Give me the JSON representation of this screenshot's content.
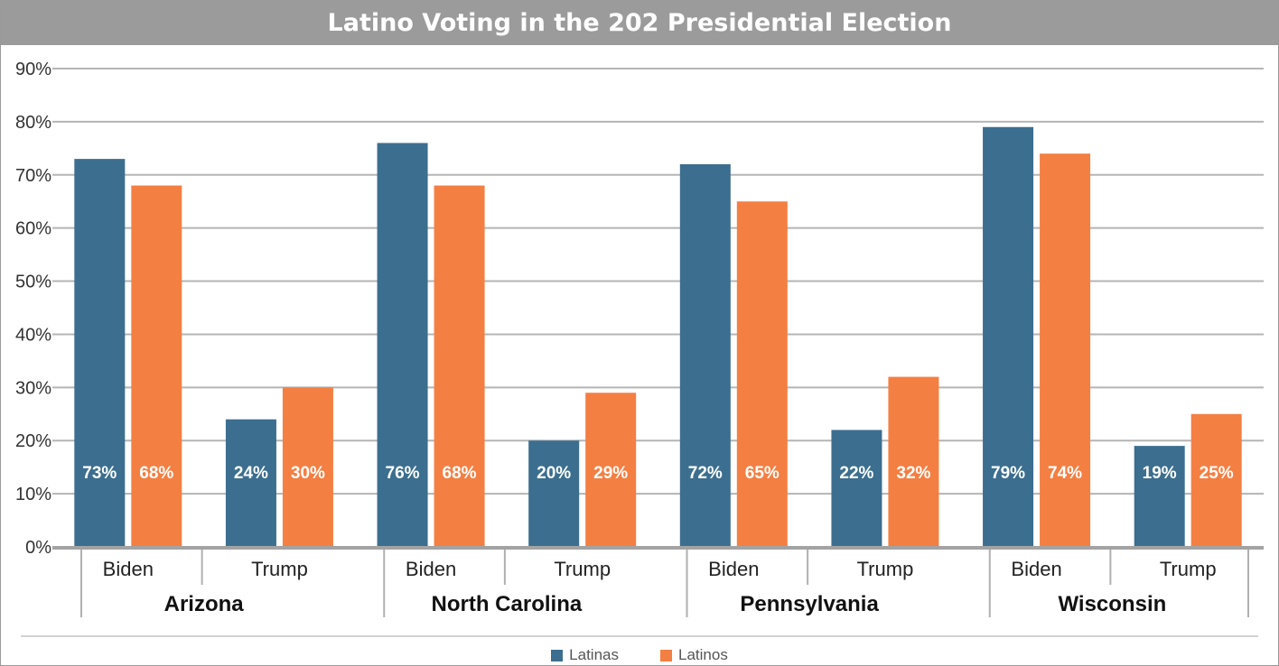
{
  "chart_data": {
    "type": "bar",
    "title": "Latino Voting in the 202 Presidential Election",
    "groups": [
      "Arizona",
      "North Carolina",
      "Pennsylvania",
      "Wisconsin"
    ],
    "subcategories": [
      "Biden",
      "Trump"
    ],
    "series": [
      {
        "name": "Latinas",
        "color": "#3c6e8f",
        "values": [
          [
            73,
            24
          ],
          [
            76,
            20
          ],
          [
            72,
            22
          ],
          [
            79,
            19
          ]
        ],
        "labels": [
          [
            "73%",
            "24%"
          ],
          [
            "76%",
            "20%"
          ],
          [
            "72%",
            "22%"
          ],
          [
            "79%",
            "19%"
          ]
        ]
      },
      {
        "name": "Latinos",
        "color": "#f47f43",
        "values": [
          [
            68,
            30
          ],
          [
            68,
            29
          ],
          [
            65,
            32
          ],
          [
            74,
            25
          ]
        ],
        "labels": [
          [
            "68%",
            "30%"
          ],
          [
            "68%",
            "29%"
          ],
          [
            "65%",
            "32%"
          ],
          [
            "74%",
            "25%"
          ]
        ]
      }
    ],
    "yticks": [
      "0%",
      "10%",
      "20%",
      "30%",
      "40%",
      "50%",
      "60%",
      "70%",
      "80%",
      "90%"
    ],
    "ylim": [
      0,
      90
    ],
    "grid": true,
    "legend_position": "bottom"
  }
}
